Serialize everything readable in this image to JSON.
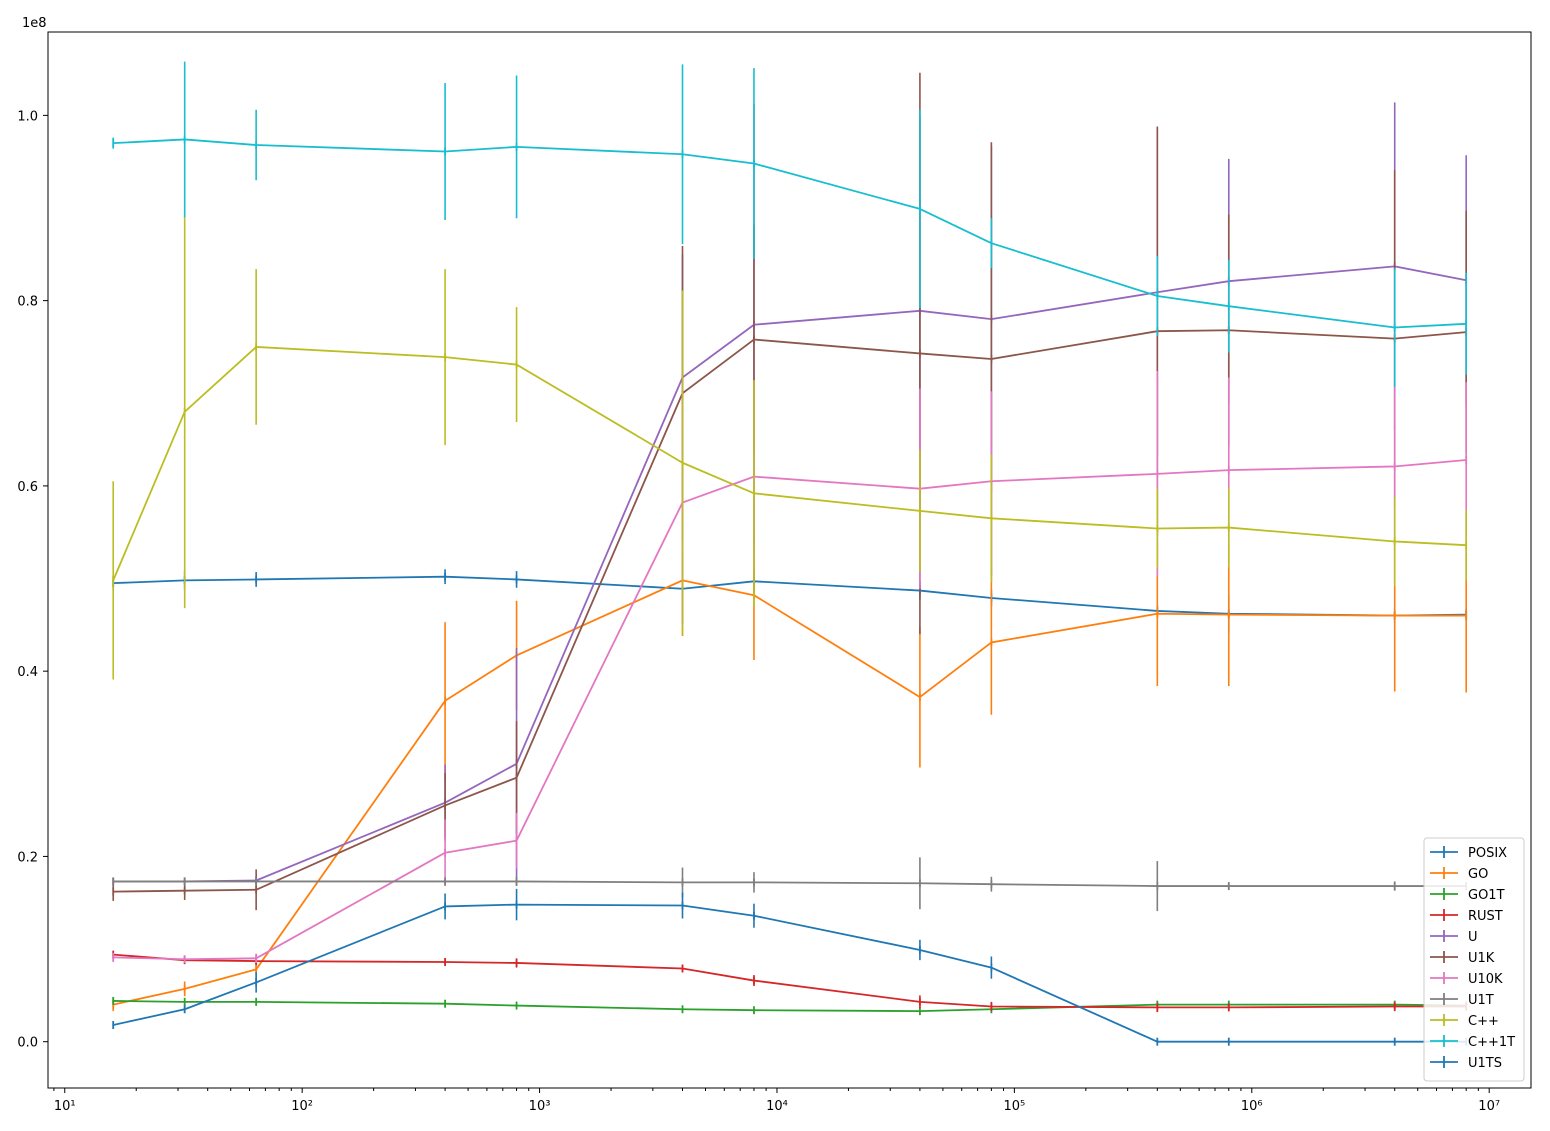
{
  "chart_data": {
    "type": "line",
    "title": "",
    "xlabel": "",
    "ylabel": "",
    "x_scale": "log",
    "xlim": [
      8.5,
      15000000
    ],
    "ylim": [
      -5000000,
      109000000
    ],
    "y_offset_label": "1e8",
    "x_ticks": [
      {
        "value": 10,
        "label": "10¹"
      },
      {
        "value": 100,
        "label": "10²"
      },
      {
        "value": 1000,
        "label": "10³"
      },
      {
        "value": 10000,
        "label": "10⁴"
      },
      {
        "value": 100000,
        "label": "10⁵"
      },
      {
        "value": 1000000,
        "label": "10⁶"
      },
      {
        "value": 10000000,
        "label": "10⁷"
      }
    ],
    "y_ticks": [
      {
        "value": 0,
        "label": "0.0"
      },
      {
        "value": 20000000,
        "label": "0.2"
      },
      {
        "value": 40000000,
        "label": "0.4"
      },
      {
        "value": 60000000,
        "label": "0.6"
      },
      {
        "value": 80000000,
        "label": "0.8"
      },
      {
        "value": 100000000,
        "label": "1.0"
      }
    ],
    "grid": false,
    "legend_position": "bottom-right",
    "x": [
      16,
      32,
      64,
      400,
      800,
      4000,
      8000,
      40000,
      80000,
      400000,
      800000,
      4000000,
      8000000
    ],
    "series": [
      {
        "name": "POSIX",
        "color": "#1f77b4",
        "values": [
          49500000,
          49800000,
          49900000,
          50200000,
          49900000,
          48900000,
          49700000,
          48700000,
          47900000,
          46500000,
          46200000,
          46000000,
          46100000
        ],
        "errors": [
          800000,
          1000000,
          800000,
          800000,
          900000,
          3800000,
          1200000,
          1000000,
          900000,
          700000,
          2100000,
          800000,
          700000
        ]
      },
      {
        "name": "GO",
        "color": "#ff7f0e",
        "values": [
          4000000,
          5700000,
          7800000,
          36800000,
          41700000,
          49800000,
          48200000,
          37200000,
          43100000,
          46200000,
          46100000,
          46000000,
          46000000
        ],
        "errors": [
          700000,
          800000,
          1200000,
          8500000,
          5900000,
          6000000,
          7000000,
          7600000,
          7800000,
          7800000,
          7700000,
          8200000,
          8300000
        ]
      },
      {
        "name": "GO1T",
        "color": "#2ca02c",
        "values": [
          4400000,
          4300000,
          4300000,
          4100000,
          3900000,
          3500000,
          3400000,
          3300000,
          3500000,
          4000000,
          4000000,
          4000000,
          3900000
        ],
        "errors": [
          200000,
          100000,
          100000,
          100000,
          100000,
          100000,
          100000,
          100000,
          100000,
          100000,
          100000,
          100000,
          100000
        ]
      },
      {
        "name": "RUST",
        "color": "#d62728",
        "values": [
          9400000,
          8800000,
          8700000,
          8600000,
          8500000,
          7900000,
          6600000,
          4300000,
          3800000,
          3700000,
          3700000,
          3800000,
          3800000
        ],
        "errors": [
          300000,
          400000,
          300000,
          300000,
          500000,
          300000,
          600000,
          700000,
          500000,
          500000,
          300000,
          500000,
          400000
        ]
      },
      {
        "name": "U",
        "color": "#9467bd",
        "values": [
          17300000,
          17300000,
          17400000,
          25800000,
          30000000,
          71700000,
          77400000,
          78900000,
          78000000,
          80900000,
          82100000,
          83700000,
          82200000
        ],
        "errors": [
          300000,
          200000,
          200000,
          4100000,
          12500000,
          13300000,
          23800000,
          21000000,
          18700000,
          17800000,
          13200000,
          17700000,
          13500000
        ]
      },
      {
        "name": "U1K",
        "color": "#8c564b",
        "values": [
          16200000,
          16300000,
          16400000,
          25500000,
          28500000,
          70000000,
          75800000,
          74300000,
          73700000,
          76700000,
          76800000,
          75900000,
          76600000
        ],
        "errors": [
          1000000,
          1000000,
          2200000,
          3500000,
          6100000,
          15900000,
          12400000,
          30300000,
          23400000,
          22100000,
          12500000,
          18200000,
          13100000
        ]
      },
      {
        "name": "U10K",
        "color": "#e377c2",
        "values": [
          9100000,
          8900000,
          9000000,
          20400000,
          21700000,
          58200000,
          61000000,
          59700000,
          60500000,
          61300000,
          61700000,
          62100000,
          62800000
        ],
        "errors": [
          500000,
          400000,
          500000,
          3600000,
          3000000,
          12900000,
          10400000,
          10800000,
          9700000,
          11100000,
          10000000,
          9100000,
          8400000
        ]
      },
      {
        "name": "U1T",
        "color": "#7f7f7f",
        "values": [
          17300000,
          17300000,
          17300000,
          17300000,
          17300000,
          17200000,
          17200000,
          17100000,
          17000000,
          16800000,
          16800000,
          16800000,
          16800000
        ],
        "errors": [
          300000,
          200000,
          300000,
          200000,
          500000,
          1600000,
          1100000,
          2800000,
          800000,
          2700000,
          400000,
          500000,
          400000
        ]
      },
      {
        "name": "C++",
        "color": "#bcbd22",
        "values": [
          49800000,
          68000000,
          75000000,
          73900000,
          73100000,
          62500000,
          59200000,
          57300000,
          56500000,
          55400000,
          55500000,
          54000000,
          53600000
        ],
        "errors": [
          10700000,
          21200000,
          8400000,
          9500000,
          6200000,
          18600000,
          12200000,
          6600000,
          6900000,
          4300000,
          4300000,
          4800000,
          3800000
        ]
      },
      {
        "name": "C++1T",
        "color": "#17becf",
        "values": [
          97000000,
          97400000,
          96800000,
          96100000,
          96600000,
          95800000,
          94800000,
          89900000,
          86200000,
          80500000,
          79400000,
          77100000,
          77500000
        ],
        "errors": [
          600000,
          8400000,
          3800000,
          7400000,
          7700000,
          9700000,
          10300000,
          10700000,
          2700000,
          4300000,
          5000000,
          6400000,
          5500000
        ]
      },
      {
        "name": "U1TS",
        "color": "#1f77b4",
        "values": [
          1800000,
          3500000,
          6400000,
          14600000,
          14800000,
          14700000,
          13600000,
          9900000,
          8000000,
          0,
          0,
          0,
          0
        ],
        "errors": [
          200000,
          400000,
          1100000,
          1400000,
          1700000,
          1400000,
          1300000,
          1100000,
          1200000,
          100000,
          100000,
          100000,
          100000
        ]
      }
    ]
  }
}
